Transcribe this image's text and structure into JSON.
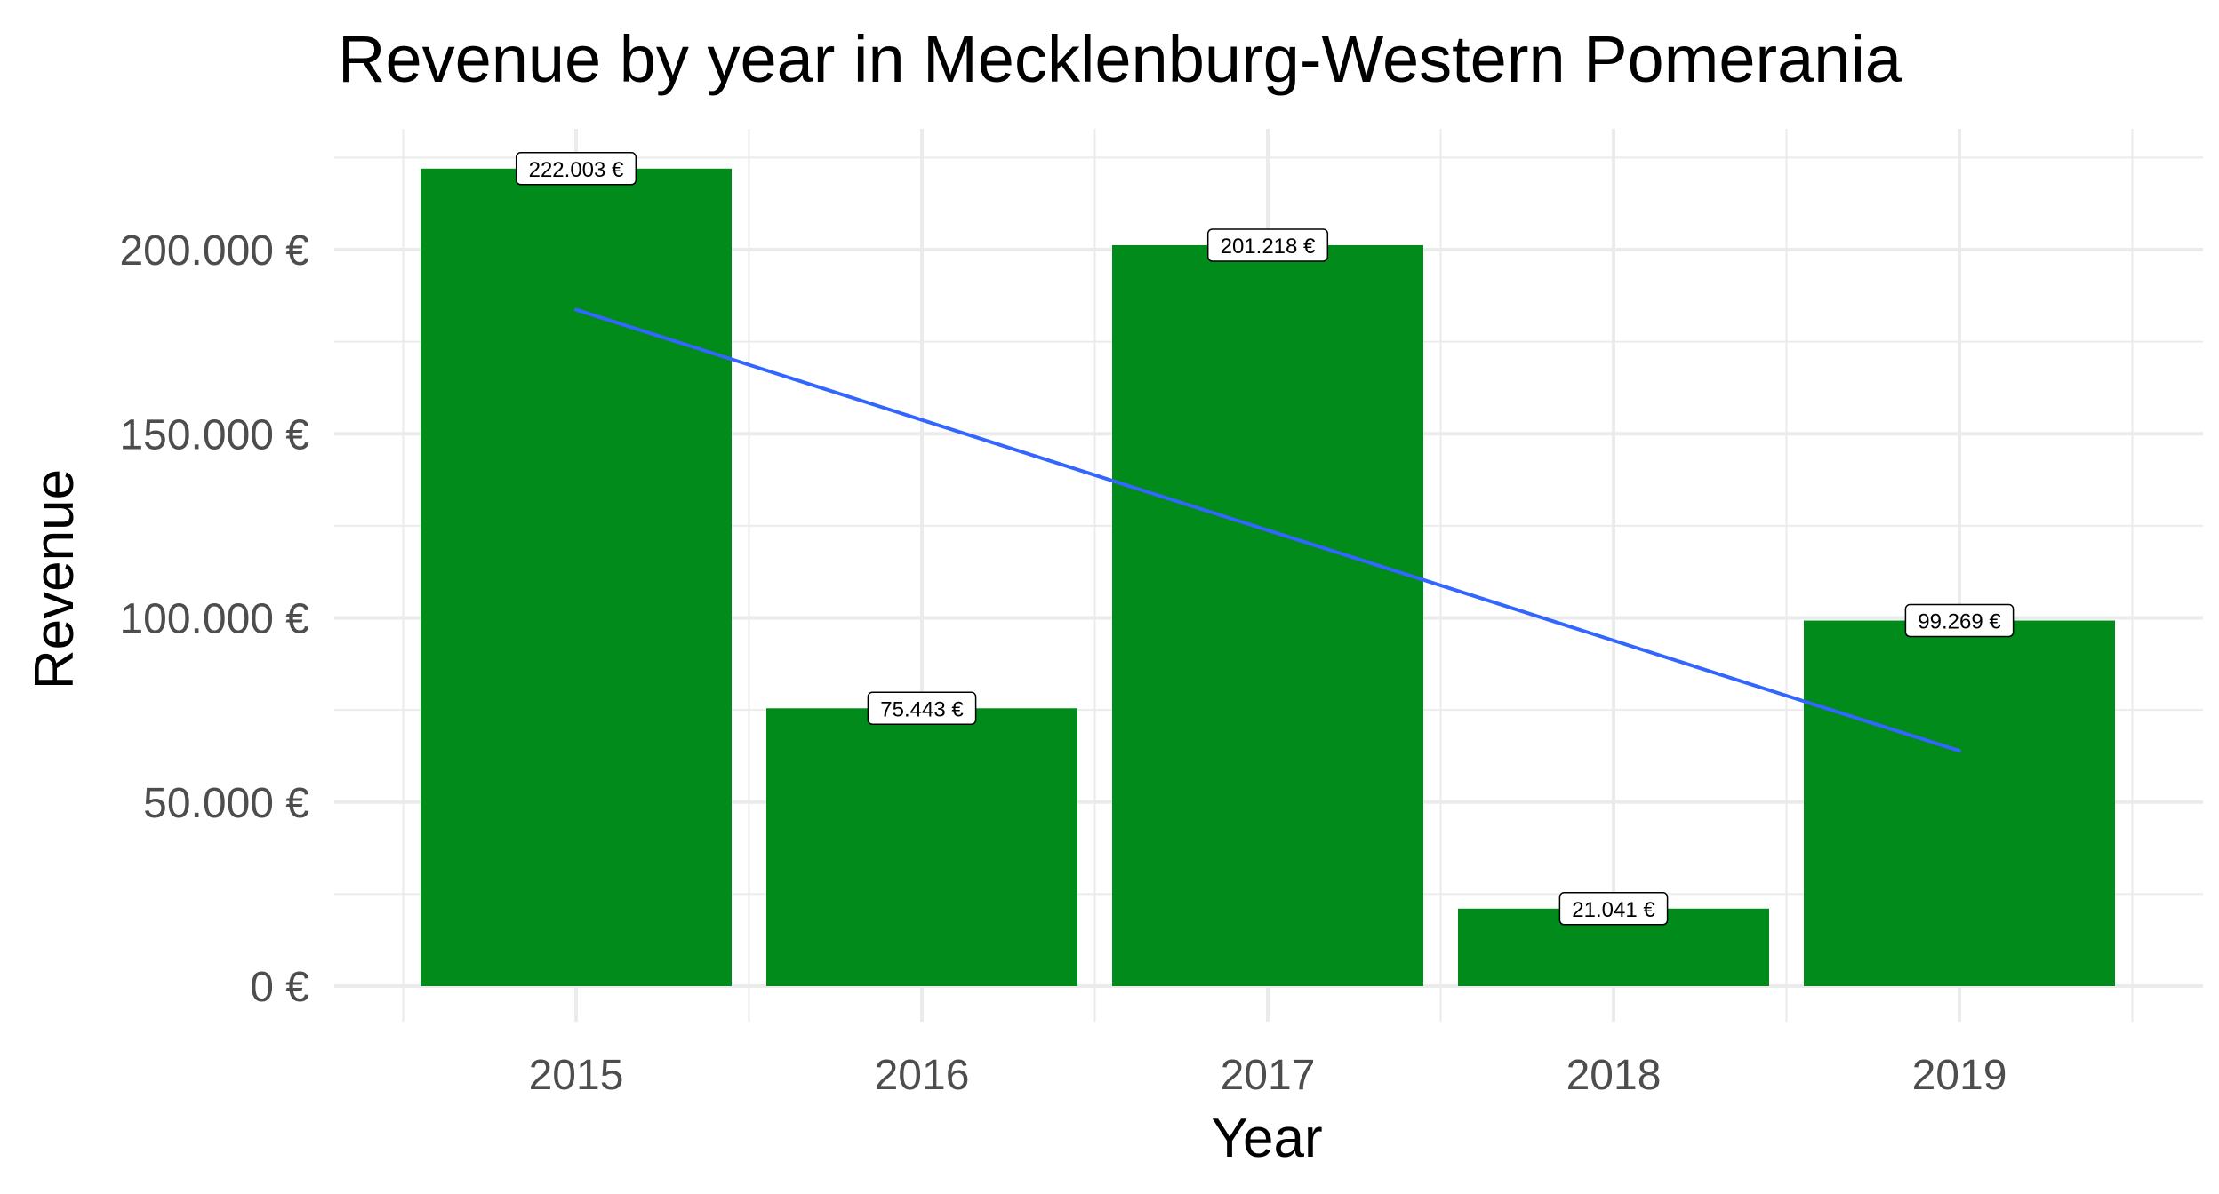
{
  "chart_data": {
    "type": "bar",
    "title": "Revenue by year in Mecklenburg-Western Pomerania",
    "xlabel": "Year",
    "ylabel": "Revenue",
    "categories": [
      "2015",
      "2016",
      "2017",
      "2018",
      "2019"
    ],
    "values": [
      222003,
      75443,
      201218,
      21041,
      99269
    ],
    "data_labels": [
      "222.003 €",
      "75.443 €",
      "201.218 €",
      "21.041 €",
      "99.269 €"
    ],
    "ylim": [
      0,
      230000
    ],
    "y_ticks": [
      0,
      50000,
      100000,
      150000,
      200000
    ],
    "y_tick_labels": [
      "0 €",
      "50.000 €",
      "100.000 €",
      "150.000 €",
      "200.000 €"
    ],
    "trend_line": {
      "type": "linear",
      "start_value": 183700,
      "end_value": 63900
    },
    "grid": true,
    "legend": "none",
    "colors": {
      "bar": "#008b1a",
      "trend": "#3366ff",
      "grid": "#ebebeb"
    }
  }
}
